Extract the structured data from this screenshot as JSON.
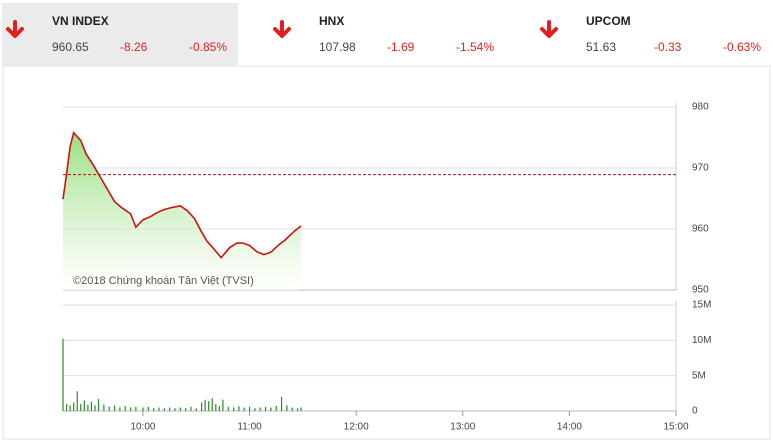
{
  "indices": [
    {
      "name": "VN INDEX",
      "value": 960.65,
      "change": -8.26,
      "percent": "-0.85%"
    },
    {
      "name": "HNX",
      "value": 107.98,
      "change": -1.69,
      "percent": "-1.54%"
    },
    {
      "name": "UPCOM",
      "value": 51.63,
      "change": -0.33,
      "percent": "-0.63%"
    }
  ],
  "chart_data": [
    {
      "type": "line",
      "watermark": "©2018 Chứng khoán Tân Việt (TVSI)",
      "x": [
        555,
        557,
        559,
        561,
        565,
        568,
        572,
        576,
        580,
        584,
        588,
        593,
        596,
        600,
        604,
        608,
        612,
        616,
        621,
        625,
        629,
        633,
        636,
        640,
        644,
        649,
        653,
        656,
        660,
        664,
        668,
        672,
        676,
        680,
        685,
        689
      ],
      "series": [
        {
          "color": "#d01010",
          "values": [
            964.9,
            969,
            973.5,
            975.8,
            974.5,
            972.3,
            970.5,
            968.5,
            966.5,
            964.5,
            963.5,
            962.5,
            960.3,
            961.5,
            962,
            962.7,
            963.2,
            963.5,
            963.8,
            963,
            961.7,
            959.5,
            958,
            956.7,
            955.3,
            957,
            957.7,
            957.7,
            957.3,
            956.3,
            955.8,
            956.2,
            957.3,
            958.2,
            959.6,
            960.5
          ]
        }
      ],
      "area_color": "#8fdc74",
      "reference": 968.91,
      "reference_color": "#b01010",
      "xlim": [
        555,
        900
      ],
      "ylim": [
        950,
        980
      ],
      "yticks": [
        950,
        960,
        970,
        980
      ],
      "grid": true
    },
    {
      "type": "bar",
      "x": [
        555,
        557,
        559,
        561,
        563,
        565,
        567,
        569,
        571,
        573,
        575,
        578,
        581,
        584,
        587,
        590,
        593,
        596,
        600,
        603,
        606,
        609,
        612,
        615,
        618,
        621,
        624,
        627,
        630,
        633,
        635,
        637,
        639,
        641,
        643,
        645,
        648,
        651,
        654,
        657,
        660,
        663,
        666,
        669,
        672,
        675,
        678,
        681,
        684,
        687,
        689
      ],
      "values": [
        10200000,
        1000000,
        800000,
        1200000,
        2800000,
        1000000,
        1500000,
        900000,
        1300000,
        800000,
        1700000,
        900000,
        600000,
        800000,
        500000,
        700000,
        500000,
        600000,
        500000,
        600000,
        400000,
        500000,
        400000,
        500000,
        400000,
        500000,
        400000,
        600000,
        400000,
        1200000,
        1600000,
        1400000,
        1800000,
        1000000,
        700000,
        1600000,
        600000,
        500000,
        700000,
        500000,
        600000,
        400000,
        500000,
        600000,
        500000,
        700000,
        2000000,
        800000,
        500000,
        400000,
        500000
      ],
      "color": "#2e8b2e",
      "xlim": [
        555,
        900
      ],
      "xticks": [
        {
          "value": 600,
          "label": "10:00"
        },
        {
          "value": 660,
          "label": "11:00"
        },
        {
          "value": 720,
          "label": "12:00"
        },
        {
          "value": 780,
          "label": "13:00"
        },
        {
          "value": 840,
          "label": "14:00"
        },
        {
          "value": 900,
          "label": "15:00"
        }
      ],
      "ylim": [
        0,
        15000000
      ],
      "yticks": [
        0,
        {
          "value": 5000000,
          "label": "5M"
        },
        {
          "value": 10000000,
          "label": "10M"
        },
        {
          "value": 15000000,
          "label": "15M"
        }
      ],
      "grid": true
    }
  ]
}
